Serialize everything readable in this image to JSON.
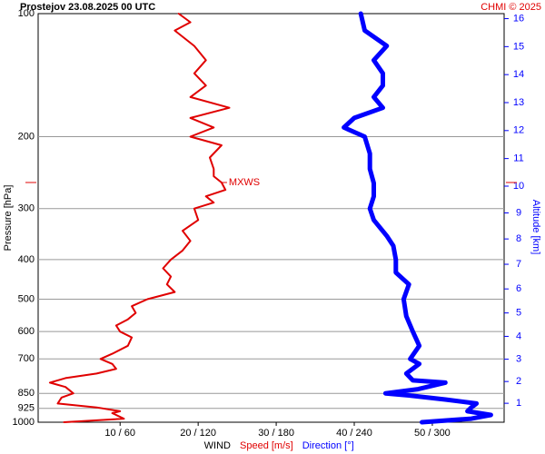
{
  "chart_data": {
    "type": "profile",
    "title": "Prostejov    23.08.2025 00 UTC",
    "credit": "CHMI © 2025",
    "x_label": "WIND",
    "y_label": "Pressure [hPa]",
    "y2_label": "Altitude [km]",
    "log_y": true,
    "ylim": [
      100,
      1000
    ],
    "yticks": [
      100,
      200,
      300,
      400,
      500,
      600,
      700,
      850,
      925,
      1000
    ],
    "xlim": [
      -0.5,
      59.2
    ],
    "x2lim": [
      -3,
      355.2
    ],
    "xticks": [
      {
        "value": 10,
        "label": "10 / 60"
      },
      {
        "value": 20,
        "label": "20 / 120"
      },
      {
        "value": 30,
        "label": "30 / 180"
      },
      {
        "value": 40,
        "label": "40 / 240"
      },
      {
        "value": 50,
        "label": "50 / 300"
      }
    ],
    "y2ticks": [
      1,
      2,
      3,
      4,
      5,
      6,
      7,
      8,
      9,
      10,
      11,
      12,
      13,
      14,
      15,
      16
    ],
    "y2color": "#0000ff",
    "annotation": {
      "label": "MXWS",
      "pressure": 259,
      "color": "#e00000"
    },
    "series": [
      {
        "name": "Speed [m/s]",
        "color": "#e00000",
        "width": 2,
        "pressure": [
          1000,
          980,
          950,
          940,
          920,
          900,
          870,
          850,
          820,
          800,
          780,
          760,
          740,
          720,
          700,
          680,
          650,
          620,
          600,
          580,
          560,
          540,
          520,
          500,
          480,
          460,
          440,
          420,
          400,
          380,
          360,
          340,
          320,
          300,
          290,
          280,
          270,
          259,
          250,
          240,
          225,
          210,
          200,
          190,
          180,
          170,
          160,
          150,
          140,
          130,
          120,
          110,
          105,
          100
        ],
        "values": [
          2.8,
          10.5,
          9,
          10,
          7,
          2,
          2.5,
          4,
          3,
          1,
          3,
          7,
          9.5,
          9,
          7.5,
          9,
          11,
          11.5,
          10,
          9.5,
          11,
          12,
          11.5,
          13.5,
          17,
          16,
          16.5,
          15.5,
          16.5,
          18,
          19,
          18,
          20,
          19.5,
          22,
          21,
          23.5,
          23,
          22,
          22,
          21.5,
          23,
          19,
          22,
          19,
          24,
          19,
          21,
          19.5,
          21,
          19.5,
          17,
          19,
          17.5
        ]
      },
      {
        "name": "Direction [°]",
        "color": "#0000ff",
        "width": 5,
        "axis": "x2",
        "pressure": [
          1000,
          980,
          960,
          940,
          920,
          900,
          880,
          860,
          850,
          830,
          800,
          790,
          760,
          720,
          700,
          650,
          600,
          550,
          500,
          460,
          430,
          400,
          370,
          350,
          320,
          300,
          280,
          260,
          240,
          220,
          200,
          190,
          180,
          170,
          160,
          150,
          140,
          130,
          120,
          110,
          100
        ],
        "values": [
          292,
          330,
          345,
          327,
          330,
          334,
          310,
          282,
          264,
          289,
          310,
          285,
          280,
          290,
          283,
          290,
          285,
          280,
          278,
          282,
          272,
          272,
          270,
          265,
          255,
          252,
          255,
          255,
          252,
          252,
          248,
          232,
          240,
          262,
          255,
          262,
          262,
          255,
          265,
          248,
          245
        ]
      }
    ]
  }
}
